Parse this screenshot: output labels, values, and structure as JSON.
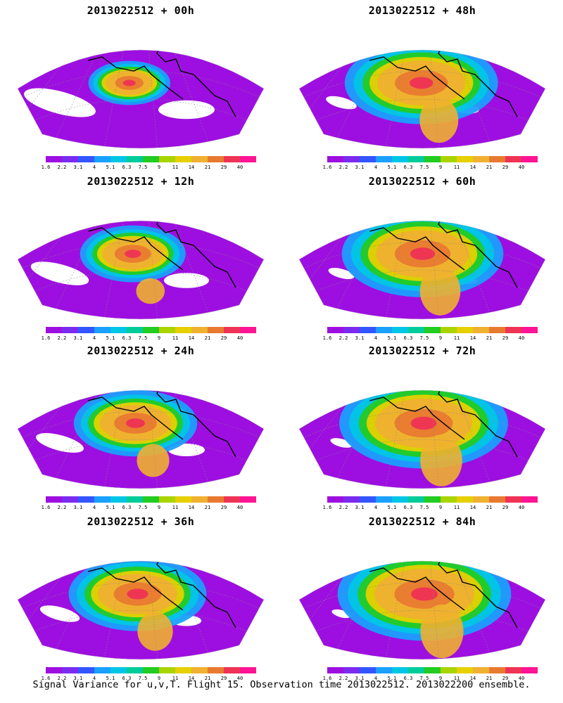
{
  "colorbar": {
    "colors": [
      "#9d0fe0",
      "#7b2bf0",
      "#3355ff",
      "#1aa0ff",
      "#00c6e6",
      "#00cc9a",
      "#22cc22",
      "#aad400",
      "#e6d000",
      "#f0b030",
      "#e87a30",
      "#ee3355",
      "#ff1493"
    ],
    "labels": [
      "1.6",
      "2.2",
      "3.1",
      "4",
      "5.1",
      "6.3",
      "7.5",
      "9",
      "11",
      "14",
      "21",
      "29",
      "40"
    ]
  },
  "panels": [
    {
      "title": "2013022512 + 00h",
      "intensity": 0.15
    },
    {
      "title": "2013022512 + 48h",
      "intensity": 0.75
    },
    {
      "title": "2013022512 + 12h",
      "intensity": 0.35
    },
    {
      "title": "2013022512 + 60h",
      "intensity": 0.82
    },
    {
      "title": "2013022512 + 24h",
      "intensity": 0.5
    },
    {
      "title": "2013022512 + 72h",
      "intensity": 0.88
    },
    {
      "title": "2013022512 + 36h",
      "intensity": 0.62
    },
    {
      "title": "2013022512 + 84h",
      "intensity": 0.92
    }
  ],
  "footer": {
    "caption": "Signal Variance for u,v,T. Flight 15. Observation time 2013022512. 2013022200 ensemble."
  }
}
